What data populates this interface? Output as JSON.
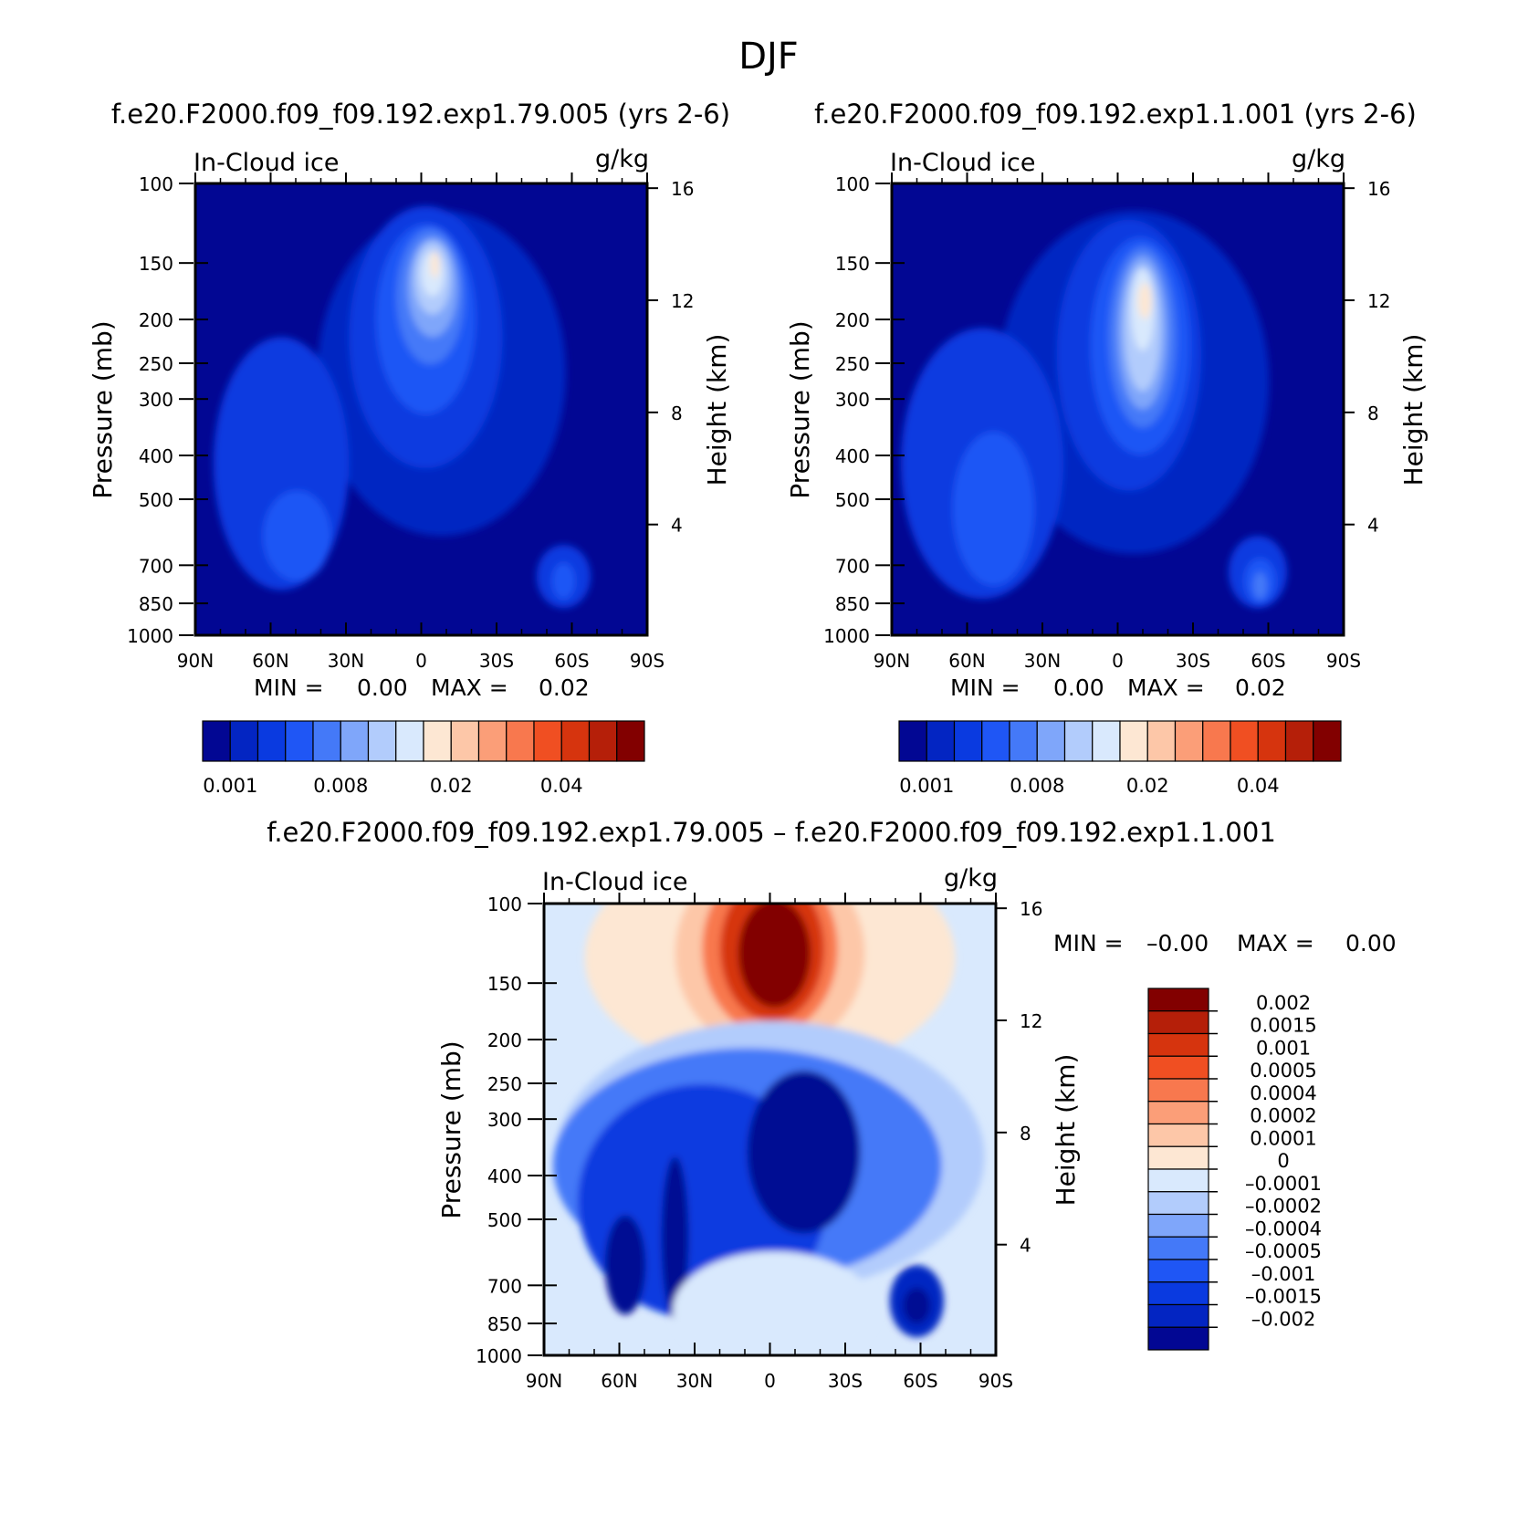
{
  "title": "DJF",
  "chart_data": [
    {
      "type": "heatmap",
      "title": "f.e20.F2000.f09_f09.192.exp1.79.005 (yrs 2-6)",
      "left_label": "In-Cloud ice",
      "right_label": "g/kg",
      "ylabel": "Pressure (mb)",
      "ylabel_right": "Height (km)",
      "x_ticks": [
        "90N",
        "60N",
        "30N",
        "0",
        "30S",
        "60S",
        "90S"
      ],
      "y_ticks": [
        "100",
        "150",
        "200",
        "250",
        "300",
        "400",
        "500",
        "700",
        "850",
        "1000"
      ],
      "y_ticks_right": [
        "16",
        "12",
        "8",
        "4"
      ],
      "ylim": [
        1000,
        100
      ],
      "min_label": "MIN =",
      "min_value": "0.00",
      "max_label": "MAX =",
      "max_value": "0.02",
      "colorbar_labels": [
        "0.001",
        "0.008",
        "0.02",
        "0.04"
      ],
      "colorbar_colors": [
        "#020793",
        "#0325c2",
        "#0a3ae0",
        "#1f56f5",
        "#4479f8",
        "#7fa6fa",
        "#b2ccfc",
        "#d9e9fd",
        "#fde7d3",
        "#fdc7a8",
        "#fb9e78",
        "#f8784e",
        "#f04f22",
        "#d6340e",
        "#b51f09",
        "#820000"
      ],
      "field_levels": [
        {
          "color": "#0325c2",
          "cx": 0.09,
          "cy": 0.42,
          "rx": 0.55,
          "ry": 0.36
        },
        {
          "color": "#0a3ae0",
          "cx": 0.02,
          "cy": 0.34,
          "rx": 0.34,
          "ry": 0.29
        },
        {
          "color": "#1f56f5",
          "cx": 0.02,
          "cy": 0.3,
          "rx": 0.22,
          "ry": 0.21
        },
        {
          "color": "#4479f8",
          "cx": 0.04,
          "cy": 0.25,
          "rx": 0.15,
          "ry": 0.15
        },
        {
          "color": "#7fa6fa",
          "cx": 0.05,
          "cy": 0.23,
          "rx": 0.11,
          "ry": 0.11
        },
        {
          "color": "#b2ccfc",
          "cx": 0.05,
          "cy": 0.21,
          "rx": 0.08,
          "ry": 0.08
        },
        {
          "color": "#d9e9fd",
          "cx": 0.05,
          "cy": 0.2,
          "rx": 0.05,
          "ry": 0.05
        },
        {
          "color": "#fde7d3",
          "cx": 0.06,
          "cy": 0.18,
          "rx": 0.02,
          "ry": 0.03
        },
        {
          "color": "#0a3ae0",
          "cx": -0.62,
          "cy": 0.62,
          "rx": 0.3,
          "ry": 0.28
        },
        {
          "color": "#1f56f5",
          "cx": -0.55,
          "cy": 0.78,
          "rx": 0.15,
          "ry": 0.1
        },
        {
          "color": "#0a3ae0",
          "cx": 0.63,
          "cy": 0.87,
          "rx": 0.12,
          "ry": 0.07
        },
        {
          "color": "#1f56f5",
          "cx": 0.63,
          "cy": 0.88,
          "rx": 0.05,
          "ry": 0.04
        }
      ]
    },
    {
      "type": "heatmap",
      "title": "f.e20.F2000.f09_f09.192.exp1.1.001 (yrs 2-6)",
      "left_label": "In-Cloud ice",
      "right_label": "g/kg",
      "ylabel": "Pressure (mb)",
      "ylabel_right": "Height (km)",
      "x_ticks": [
        "90N",
        "60N",
        "30N",
        "0",
        "30S",
        "60S",
        "90S"
      ],
      "y_ticks": [
        "100",
        "150",
        "200",
        "250",
        "300",
        "400",
        "500",
        "700",
        "850",
        "1000"
      ],
      "y_ticks_right": [
        "16",
        "12",
        "8",
        "4"
      ],
      "ylim": [
        1000,
        100
      ],
      "min_label": "MIN =",
      "min_value": "0.00",
      "max_label": "MAX =",
      "max_value": "0.02",
      "colorbar_labels": [
        "0.001",
        "0.008",
        "0.02",
        "0.04"
      ],
      "colorbar_colors": [
        "#020793",
        "#0325c2",
        "#0a3ae0",
        "#1f56f5",
        "#4479f8",
        "#7fa6fa",
        "#b2ccfc",
        "#d9e9fd",
        "#fde7d3",
        "#fdc7a8",
        "#fb9e78",
        "#f8784e",
        "#f04f22",
        "#d6340e",
        "#b51f09",
        "#820000"
      ],
      "field_levels": [
        {
          "color": "#0325c2",
          "cx": 0.07,
          "cy": 0.44,
          "rx": 0.6,
          "ry": 0.38
        },
        {
          "color": "#0a3ae0",
          "cx": 0.05,
          "cy": 0.38,
          "rx": 0.32,
          "ry": 0.3
        },
        {
          "color": "#1f56f5",
          "cx": 0.1,
          "cy": 0.36,
          "rx": 0.22,
          "ry": 0.24
        },
        {
          "color": "#4479f8",
          "cx": 0.11,
          "cy": 0.34,
          "rx": 0.15,
          "ry": 0.2
        },
        {
          "color": "#7fa6fa",
          "cx": 0.11,
          "cy": 0.33,
          "rx": 0.11,
          "ry": 0.17
        },
        {
          "color": "#b2ccfc",
          "cx": 0.11,
          "cy": 0.32,
          "rx": 0.08,
          "ry": 0.14
        },
        {
          "color": "#d9e9fd",
          "cx": 0.11,
          "cy": 0.28,
          "rx": 0.05,
          "ry": 0.09
        },
        {
          "color": "#fde7d3",
          "cx": 0.12,
          "cy": 0.26,
          "rx": 0.03,
          "ry": 0.04
        },
        {
          "color": "#0a3ae0",
          "cx": -0.6,
          "cy": 0.62,
          "rx": 0.36,
          "ry": 0.3
        },
        {
          "color": "#1f56f5",
          "cx": -0.55,
          "cy": 0.72,
          "rx": 0.18,
          "ry": 0.17
        },
        {
          "color": "#0a3ae0",
          "cx": 0.62,
          "cy": 0.86,
          "rx": 0.13,
          "ry": 0.08
        },
        {
          "color": "#1f56f5",
          "cx": 0.63,
          "cy": 0.88,
          "rx": 0.07,
          "ry": 0.05
        },
        {
          "color": "#4479f8",
          "cx": 0.63,
          "cy": 0.89,
          "rx": 0.03,
          "ry": 0.03
        }
      ]
    },
    {
      "type": "heatmap",
      "title": "f.e20.F2000.f09_f09.192.exp1.79.005 – f.e20.F2000.f09_f09.192.exp1.1.001",
      "left_label": "In-Cloud ice",
      "right_label": "g/kg",
      "ylabel": "Pressure (mb)",
      "ylabel_right": "Height (km)",
      "x_ticks": [
        "90N",
        "60N",
        "30N",
        "0",
        "30S",
        "60S",
        "90S"
      ],
      "y_ticks": [
        "100",
        "150",
        "200",
        "250",
        "300",
        "400",
        "500",
        "700",
        "850",
        "1000"
      ],
      "y_ticks_right": [
        "16",
        "12",
        "8",
        "4"
      ],
      "ylim": [
        1000,
        100
      ],
      "min_label": "MIN =",
      "min_value": "–0.00",
      "max_label": "MAX =",
      "max_value": "0.00",
      "colorbar_labels": [
        "0.002",
        "0.0015",
        "0.001",
        "0.0005",
        "0.0004",
        "0.0002",
        "0.0001",
        "0",
        "–0.0001",
        "–0.0002",
        "–0.0004",
        "–0.0005",
        "–0.001",
        "–0.0015",
        "–0.002"
      ],
      "colorbar_colors": [
        "#820000",
        "#b51f09",
        "#d6340e",
        "#f04f22",
        "#f8784e",
        "#fb9e78",
        "#fdc7a8",
        "#fde7d3",
        "#d9e9fd",
        "#b2ccfc",
        "#7fa6fa",
        "#4479f8",
        "#1f56f5",
        "#0a3ae0",
        "#0325c2",
        "#020793"
      ],
      "field_levels": [
        {
          "color": "#fde7d3",
          "cx": 0.0,
          "cy": 0.12,
          "rx": 0.82,
          "ry": 0.26
        },
        {
          "color": "#fdc7a8",
          "cx": 0.0,
          "cy": 0.11,
          "rx": 0.42,
          "ry": 0.22
        },
        {
          "color": "#f8784e",
          "cx": 0.0,
          "cy": 0.1,
          "rx": 0.3,
          "ry": 0.19
        },
        {
          "color": "#d6340e",
          "cx": 0.01,
          "cy": 0.1,
          "rx": 0.23,
          "ry": 0.16
        },
        {
          "color": "#820000",
          "cx": 0.02,
          "cy": 0.11,
          "rx": 0.16,
          "ry": 0.12
        },
        {
          "color": "#d6340e",
          "cx": -0.48,
          "cy": 0.39,
          "rx": 0.04,
          "ry": 0.03
        },
        {
          "color": "#b2ccfc",
          "cx": 0.0,
          "cy": 0.56,
          "rx": 0.95,
          "ry": 0.3
        },
        {
          "color": "#4479f8",
          "cx": -0.1,
          "cy": 0.58,
          "rx": 0.86,
          "ry": 0.26
        },
        {
          "color": "#0a3ae0",
          "cx": -0.3,
          "cy": 0.66,
          "rx": 0.55,
          "ry": 0.26
        },
        {
          "color": "#020793",
          "cx": 0.15,
          "cy": 0.55,
          "rx": 0.25,
          "ry": 0.18
        },
        {
          "color": "#020793",
          "cx": -0.64,
          "cy": 0.8,
          "rx": 0.09,
          "ry": 0.11
        },
        {
          "color": "#020793",
          "cx": -0.42,
          "cy": 0.74,
          "rx": 0.06,
          "ry": 0.18
        },
        {
          "color": "#d9e9fd",
          "cx": 0.02,
          "cy": 0.9,
          "rx": 0.45,
          "ry": 0.13
        },
        {
          "color": "#0325c2",
          "cx": 0.65,
          "cy": 0.88,
          "rx": 0.12,
          "ry": 0.08
        },
        {
          "color": "#020793",
          "cx": 0.65,
          "cy": 0.89,
          "rx": 0.06,
          "ry": 0.04
        }
      ]
    }
  ]
}
